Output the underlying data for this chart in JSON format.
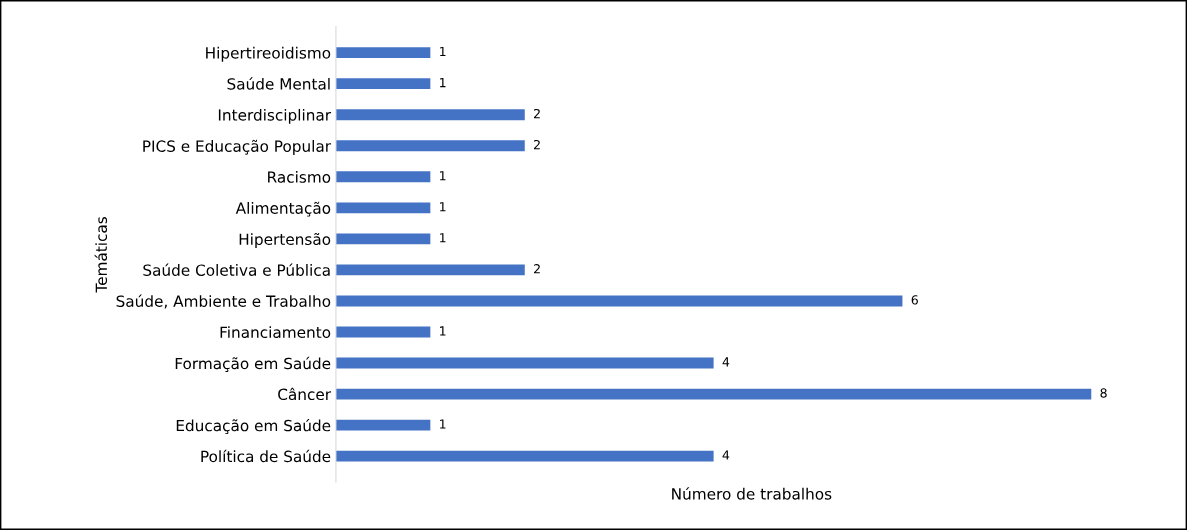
{
  "chart_data": {
    "type": "bar",
    "orientation": "horizontal",
    "xlabel": "Número de trabalhos",
    "ylabel": "Temáticas",
    "categories": [
      "Hipertireoidismo",
      "Saúde Mental",
      "Interdisciplinar",
      "PICS e Educação Popular",
      "Racismo",
      "Alimentação",
      "Hipertensão",
      "Saúde Coletiva e Pública",
      "Saúde, Ambiente e Trabalho",
      "Financiamento",
      "Formação em Saúde",
      "Câncer",
      "Educação em Saúde",
      "Política de Saúde"
    ],
    "values": [
      1,
      1,
      2,
      2,
      1,
      1,
      1,
      2,
      6,
      1,
      4,
      8,
      1,
      4
    ],
    "color": "#4472c4",
    "data_labels": true,
    "tick_labels": "y",
    "grid": false
  }
}
